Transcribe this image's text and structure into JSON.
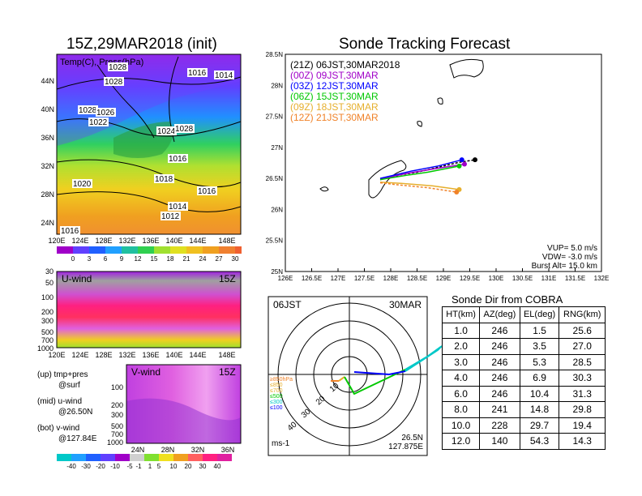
{
  "left_title": "15Z,29MAR2018 (init)",
  "right_title": "Sonde Tracking Forecast",
  "map": {
    "overlay_label": "Temp(C), Press(hPa)",
    "lat_labels": [
      "44N",
      "40N",
      "36N",
      "32N",
      "28N",
      "24N"
    ],
    "lon_labels": [
      "120E",
      "124E",
      "128E",
      "132E",
      "136E",
      "140E",
      "144E",
      "148E"
    ],
    "isobar_labels": [
      "1028",
      "1028",
      "1016",
      "1014",
      "1028",
      "1026",
      "1022",
      "1024",
      "1028",
      "1016",
      "1018",
      "1020",
      "1016",
      "1014",
      "1012",
      "1016"
    ],
    "colorbar_ticks": [
      "0",
      "3",
      "6",
      "9",
      "12",
      "15",
      "18",
      "21",
      "24",
      "27",
      "30"
    ]
  },
  "uwind": {
    "label": "U-wind",
    "time": "15Z",
    "yticks": [
      "30",
      "50",
      "100",
      "200",
      "300",
      "500",
      "700",
      "1000"
    ],
    "xticks": [
      "120E",
      "124E",
      "128E",
      "132E",
      "136E",
      "140E",
      "144E",
      "148E"
    ]
  },
  "vwind": {
    "label": "V-wind",
    "time": "15Z",
    "yticks": [
      "100",
      "200",
      "300",
      "500",
      "700",
      "1000"
    ],
    "xticks": [
      "24N",
      "28N",
      "32N",
      "36N"
    ],
    "colorbar_ticks": [
      "-40",
      "-30",
      "-20",
      "-10",
      "-5",
      "-1",
      "1",
      "5",
      "10",
      "20",
      "30",
      "40"
    ]
  },
  "notes": {
    "up_1": "(up) tmp+pres",
    "up_2": "@surf",
    "mid_1": "(mid) u-wind",
    "mid_2": "@26.50N",
    "bot_1": "(bot) v-wind",
    "bot_2": "@127.84E"
  },
  "tracking": {
    "legend": [
      {
        "text": "(21Z)  06JST,30MAR2018",
        "color": "#000000"
      },
      {
        "text": "(00Z)  09JST,30MAR",
        "color": "#a000c8"
      },
      {
        "text": "(03Z)  12JST,30MAR",
        "color": "#0000ff"
      },
      {
        "text": "(06Z)  15JST,30MAR",
        "color": "#00c800"
      },
      {
        "text": "(09Z)  18JST,30MAR",
        "color": "#e6af2d"
      },
      {
        "text": "(12Z)  21JST,30MAR",
        "color": "#f08228"
      }
    ],
    "lat_ticks": [
      "28.5N",
      "28N",
      "27.5N",
      "27N",
      "26.5N",
      "26N",
      "25.5N",
      "25N"
    ],
    "lon_ticks": [
      "126E",
      "126.5E",
      "127E",
      "127.5E",
      "128E",
      "128.5E",
      "129E",
      "129.5E",
      "130E",
      "130.5E",
      "131E",
      "131.5E",
      "132E"
    ],
    "params_1": "VUP= 5.0 m/s",
    "params_2": "VDW= -3.0 m/s",
    "params_3": "Burst Alt= 15.0 km"
  },
  "polar": {
    "time_label": "06JST",
    "date_label": "30MAR",
    "ring_labels": [
      "10",
      "20",
      "30",
      "40"
    ],
    "unit": "ms-1",
    "pos_1": "26.5N",
    "pos_2": "127.875E",
    "levels": [
      {
        "text": "≥850hPa",
        "color": "#f08228"
      },
      {
        "text": "≤850",
        "color": "#e6af2d"
      },
      {
        "text": "≤700",
        "color": "#e6af2d"
      },
      {
        "text": "≤500",
        "color": "#00c800"
      },
      {
        "text": "≤300",
        "color": "#00c8c8"
      },
      {
        "text": "≤100",
        "color": "#0000ff"
      }
    ]
  },
  "sonde_table": {
    "title": "Sonde Dir from COBRA",
    "headers": [
      "HT(km)",
      "AZ(deg)",
      "EL(deg)",
      "RNG(km)"
    ],
    "rows": [
      [
        "1.0",
        "246",
        "1.5",
        "25.6"
      ],
      [
        "2.0",
        "246",
        "3.5",
        "27.0"
      ],
      [
        "3.0",
        "246",
        "5.3",
        "28.5"
      ],
      [
        "4.0",
        "246",
        "6.9",
        "30.3"
      ],
      [
        "6.0",
        "246",
        "10.4",
        "31.3"
      ],
      [
        "8.0",
        "241",
        "14.8",
        "29.8"
      ],
      [
        "10.0",
        "228",
        "29.7",
        "19.4"
      ],
      [
        "12.0",
        "140",
        "54.3",
        "14.3"
      ]
    ]
  },
  "chart_data": [
    {
      "type": "line",
      "title": "Sonde Tracking Forecast",
      "xlim": [
        126,
        132
      ],
      "ylim": [
        25,
        28.5
      ],
      "series": [
        {
          "name": "(21Z) 06JST,30MAR2018",
          "x": [
            127.8,
            128.2,
            128.5,
            129.0,
            129.3,
            129.6
          ],
          "y": [
            26.48,
            26.56,
            26.6,
            26.7,
            26.76,
            26.8
          ]
        },
        {
          "name": "(00Z) 09JST,30MAR",
          "x": [
            127.8,
            128.3,
            128.8,
            129.4
          ],
          "y": [
            26.49,
            26.58,
            26.65,
            26.73
          ]
        },
        {
          "name": "(03Z) 12JST,30MAR",
          "x": [
            127.8,
            128.4,
            128.9,
            129.35
          ],
          "y": [
            26.5,
            26.62,
            26.7,
            26.8
          ]
        },
        {
          "name": "(06Z) 15JST,30MAR",
          "x": [
            127.8,
            128.3,
            128.7,
            129.3
          ],
          "y": [
            26.48,
            26.55,
            26.6,
            26.7
          ]
        },
        {
          "name": "(09Z) 18JST,30MAR",
          "x": [
            127.8,
            128.2,
            128.8,
            129.3
          ],
          "y": [
            26.44,
            26.42,
            26.38,
            26.32
          ]
        },
        {
          "name": "(12Z) 21JST,30MAR",
          "x": [
            127.8,
            128.1,
            128.7,
            129.25
          ],
          "y": [
            26.43,
            26.4,
            26.35,
            26.28
          ]
        }
      ]
    },
    {
      "type": "table",
      "title": "Sonde Dir from COBRA",
      "columns": [
        "HT(km)",
        "AZ(deg)",
        "EL(deg)",
        "RNG(km)"
      ],
      "rows": [
        [
          1.0,
          246,
          1.5,
          25.6
        ],
        [
          2.0,
          246,
          3.5,
          27.0
        ],
        [
          3.0,
          246,
          5.3,
          28.5
        ],
        [
          4.0,
          246,
          6.9,
          30.3
        ],
        [
          6.0,
          246,
          10.4,
          31.3
        ],
        [
          8.0,
          241,
          14.8,
          29.8
        ],
        [
          10.0,
          228,
          29.7,
          19.4
        ],
        [
          12.0,
          140,
          54.3,
          14.3
        ]
      ]
    }
  ]
}
